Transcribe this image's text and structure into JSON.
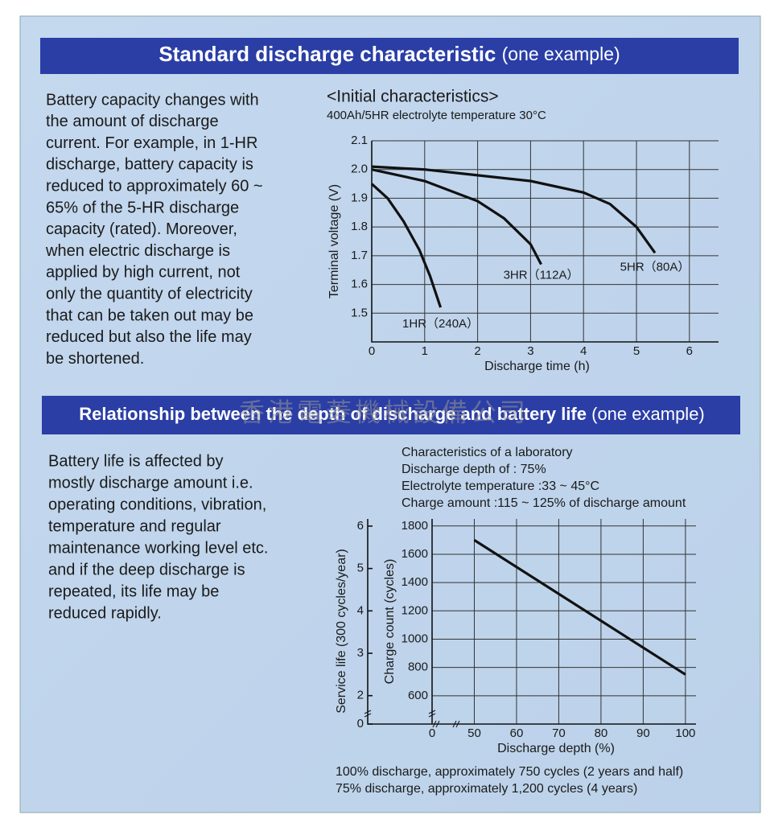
{
  "sections": [
    {
      "title": "Standard discharge characteristic",
      "title_note": "(one example)",
      "text_lines": [
        "Battery capacity changes with",
        "the amount of discharge",
        "current. For example, in 1-HR",
        "discharge, battery capacity is",
        "reduced to approximately 60 ~",
        "65% of the 5-HR discharge",
        "capacity (rated). Moreover,",
        "when electric discharge is",
        "applied by high current, not",
        "only the quantity of electricity",
        "that can be taken out may be",
        "reduced but also the life may",
        "be shortened."
      ]
    },
    {
      "title": "Relationship between the depth of discharge and battery life",
      "title_note": "(one example)",
      "text_lines": [
        "Battery life is affected by",
        "mostly discharge amount i.e.",
        "operating conditions, vibration,",
        "temperature and regular",
        "maintenance working level etc.",
        "and if the deep discharge is",
        "repeated, its life may be",
        "reduced rapidly."
      ]
    }
  ],
  "watermark": "香港電菱機械設備公司",
  "chart_data": [
    {
      "type": "line",
      "title": "<Initial characteristics>",
      "subtitle": "400Ah/5HR electrolyte temperature 30°C",
      "x_label": "Discharge time (h)",
      "y_label": "Terminal voltage (V)",
      "xlim": [
        0,
        6.55
      ],
      "ylim": [
        1.4,
        2.1
      ],
      "xticks": [
        0,
        1,
        2,
        3,
        4,
        5,
        6
      ],
      "yticks": [
        1.5,
        1.6,
        1.7,
        1.8,
        1.9,
        {
          "value": 2,
          "label": "2.0"
        },
        2.1
      ],
      "grid": true,
      "series": [
        {
          "name": "1HR（240A）",
          "color": "#111111",
          "x": [
            0,
            0.3,
            0.6,
            0.9,
            1.1,
            1.3
          ],
          "values": [
            1.95,
            1.9,
            1.82,
            1.72,
            1.63,
            1.52
          ]
        },
        {
          "name": "3HR（112A）",
          "color": "#111111",
          "x": [
            0,
            1,
            2,
            2.5,
            3,
            3.2
          ],
          "values": [
            2.0,
            1.96,
            1.89,
            1.83,
            1.74,
            1.67
          ]
        },
        {
          "name": "5HR（80A）",
          "color": "#111111",
          "x": [
            0,
            1,
            2,
            3,
            4,
            4.5,
            5,
            5.35
          ],
          "values": [
            2.01,
            2.0,
            1.98,
            1.96,
            1.92,
            1.88,
            1.8,
            1.71
          ]
        }
      ]
    },
    {
      "type": "line",
      "annotations": [
        "Characteristics of a laboratory",
        "Discharge depth of : 75%",
        "Electrolyte temperature :33 ~ 45°C",
        "Charge amount :115 ~ 125% of discharge amount"
      ],
      "x_label": "Discharge depth (%)",
      "y_label": "Charge count (cycles)",
      "y2_label": "Service life (300 cycles/year)",
      "xlim": [
        40,
        102.5
      ],
      "ylim": [
        400,
        1850
      ],
      "y2lim": [
        1.33,
        6.17
      ],
      "xticks": [
        0,
        50,
        60,
        70,
        80,
        90,
        100
      ],
      "yticks": [
        600,
        800,
        1000,
        1200,
        1400,
        1600,
        1800
      ],
      "y2ticks": [
        0,
        2,
        3,
        4,
        5,
        6
      ],
      "axis_break": true,
      "grid": true,
      "series": [
        {
          "color": "#111111",
          "x": [
            50,
            100
          ],
          "values": [
            1700,
            750
          ]
        }
      ],
      "footnotes": [
        "100% discharge, approximately 750 cycles (2 years and half)",
        "75% discharge, approximately 1,200 cycles (4 years)"
      ]
    }
  ]
}
